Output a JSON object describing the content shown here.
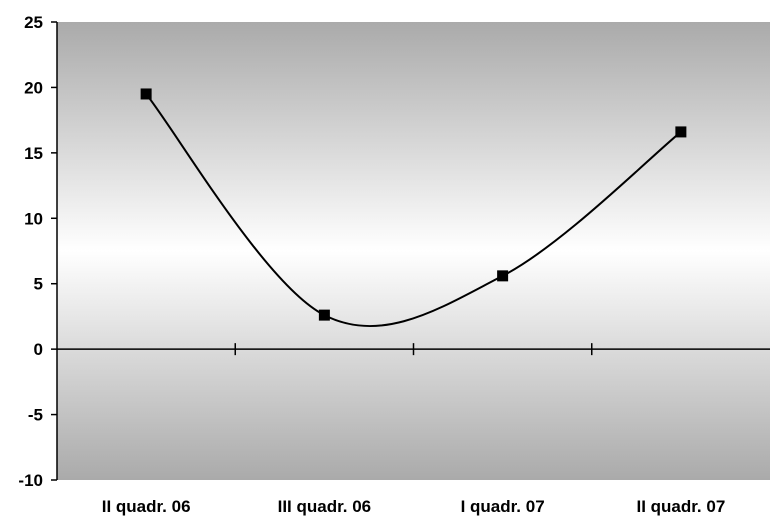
{
  "chart_data": {
    "type": "line",
    "categories": [
      "II quadr. 06",
      "III quadr. 06",
      "I quadr. 07",
      "II quadr. 07"
    ],
    "series": [
      {
        "values": [
          19.5,
          2.6,
          5.6,
          16.6
        ]
      }
    ],
    "title": "",
    "xlabel": "",
    "ylabel": "",
    "ylim": [
      -10,
      25
    ],
    "yticks": [
      "-10",
      "-5",
      "0",
      "5",
      "10",
      "15",
      "20",
      "25"
    ],
    "grid": false,
    "legend": "none",
    "colors": {
      "line": "#000000",
      "marker": "#000000",
      "plot_dark": "#aaaaaa",
      "plot_light": "#ffffff"
    }
  }
}
